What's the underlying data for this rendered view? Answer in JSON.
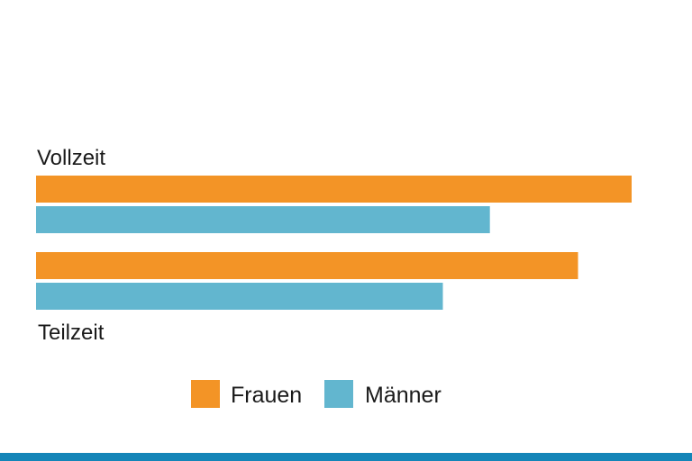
{
  "chart_data": {
    "type": "bar",
    "orientation": "horizontal",
    "categories": [
      "Vollzeit",
      "Teilzeit"
    ],
    "series": [
      {
        "name": "Frauen",
        "color": "#f39426",
        "values": [
          100,
          91
        ]
      },
      {
        "name": "Männer",
        "color": "#62b6cf",
        "values": [
          76.2,
          68.3
        ]
      }
    ],
    "xlim": [
      0,
      100
    ],
    "grid": false,
    "legend_position": "bottom-center",
    "title": "",
    "xlabel": "",
    "ylabel": ""
  },
  "theme": {
    "bottom_bar_color": "#1485b8"
  }
}
